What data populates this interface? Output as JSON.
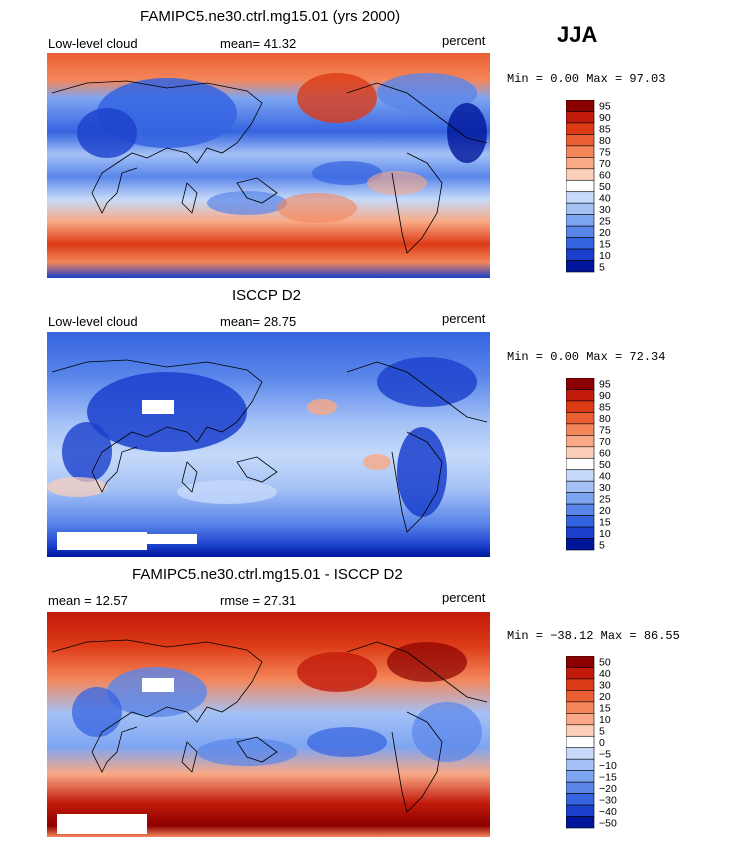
{
  "season": "JJA",
  "chart_data": [
    {
      "type": "heatmap",
      "title": "FAMIPC5.ne30.ctrl.mg15.01 (yrs 2000)",
      "left_label": "Low-level cloud",
      "stat1": "mean=  41.32",
      "units": "percent",
      "minmax": "Min =   0.00 Max =  97.03",
      "colorbar": {
        "levels": [
          "95",
          "90",
          "85",
          "80",
          "75",
          "70",
          "60",
          "50",
          "40",
          "30",
          "25",
          "20",
          "15",
          "10",
          "5"
        ],
        "colors": [
          "#8b0000",
          "#c21a0b",
          "#dc3b16",
          "#ea5f34",
          "#f4865a",
          "#f9a985",
          "#fcd0b8",
          "#ffffff",
          "#c5dafa",
          "#a4c1f6",
          "#7ea5f1",
          "#5a86ea",
          "#3564e0",
          "#1a40cc",
          "#00169a"
        ]
      }
    },
    {
      "type": "heatmap",
      "title": "ISCCP D2",
      "left_label": "Low-level cloud",
      "stat1": "mean=  28.75",
      "units": "percent",
      "minmax": "Min =   0.00 Max =  72.34",
      "colorbar": {
        "levels": [
          "95",
          "90",
          "85",
          "80",
          "75",
          "70",
          "60",
          "50",
          "40",
          "30",
          "25",
          "20",
          "15",
          "10",
          "5"
        ],
        "colors": [
          "#8b0000",
          "#c21a0b",
          "#dc3b16",
          "#ea5f34",
          "#f4865a",
          "#f9a985",
          "#fcd0b8",
          "#ffffff",
          "#c5dafa",
          "#a4c1f6",
          "#7ea5f1",
          "#5a86ea",
          "#3564e0",
          "#1a40cc",
          "#00169a"
        ]
      }
    },
    {
      "type": "heatmap",
      "title": "FAMIPC5.ne30.ctrl.mg15.01 - ISCCP D2",
      "left_label": "mean =  12.57",
      "stat1": "rmse =  27.31",
      "units": "percent",
      "minmax": "Min = −38.12 Max =  86.55",
      "colorbar": {
        "levels": [
          "50",
          "40",
          "30",
          "20",
          "15",
          "10",
          "5",
          "0",
          "−5",
          "−10",
          "−15",
          "−20",
          "−30",
          "−40",
          "−50"
        ],
        "colors": [
          "#8b0000",
          "#c21a0b",
          "#dc3b16",
          "#ea5f34",
          "#f4865a",
          "#f9a985",
          "#fcd0b8",
          "#ffffff",
          "#c5dafa",
          "#a4c1f6",
          "#7ea5f1",
          "#5a86ea",
          "#3564e0",
          "#1a40cc",
          "#00169a"
        ]
      }
    }
  ]
}
